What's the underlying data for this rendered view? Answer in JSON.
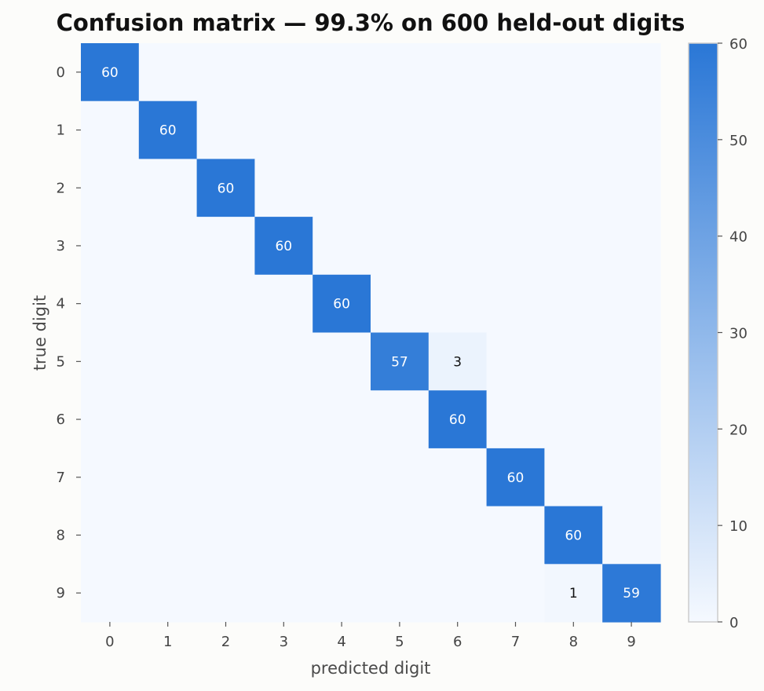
{
  "chart_data": {
    "type": "heatmap",
    "title": "Confusion matrix — 99.3% on 600 held-out digits",
    "xlabel": "predicted digit",
    "ylabel": "true digit",
    "x_categories": [
      "0",
      "1",
      "2",
      "3",
      "4",
      "5",
      "6",
      "7",
      "8",
      "9"
    ],
    "y_categories": [
      "0",
      "1",
      "2",
      "3",
      "4",
      "5",
      "6",
      "7",
      "8",
      "9"
    ],
    "matrix": [
      [
        60,
        0,
        0,
        0,
        0,
        0,
        0,
        0,
        0,
        0
      ],
      [
        0,
        60,
        0,
        0,
        0,
        0,
        0,
        0,
        0,
        0
      ],
      [
        0,
        0,
        60,
        0,
        0,
        0,
        0,
        0,
        0,
        0
      ],
      [
        0,
        0,
        0,
        60,
        0,
        0,
        0,
        0,
        0,
        0
      ],
      [
        0,
        0,
        0,
        0,
        60,
        0,
        0,
        0,
        0,
        0
      ],
      [
        0,
        0,
        0,
        0,
        0,
        57,
        3,
        0,
        0,
        0
      ],
      [
        0,
        0,
        0,
        0,
        0,
        0,
        60,
        0,
        0,
        0
      ],
      [
        0,
        0,
        0,
        0,
        0,
        0,
        0,
        60,
        0,
        0
      ],
      [
        0,
        0,
        0,
        0,
        0,
        0,
        0,
        0,
        60,
        0
      ],
      [
        0,
        0,
        0,
        0,
        0,
        0,
        0,
        0,
        1,
        59
      ]
    ],
    "show_zero_labels": false,
    "value_range": [
      0,
      60
    ],
    "colorbar": {
      "ticks": [
        0,
        10,
        20,
        30,
        40,
        50,
        60
      ],
      "tick_labels": [
        "0",
        "10",
        "20",
        "30",
        "40",
        "50",
        "60"
      ],
      "placement": "right"
    },
    "colors": {
      "low": "#f5f9ff",
      "high": "#2a77d6",
      "label_light": "#ffffff",
      "label_dark": "#111111",
      "frame": "#cccccc"
    },
    "grid": false
  }
}
